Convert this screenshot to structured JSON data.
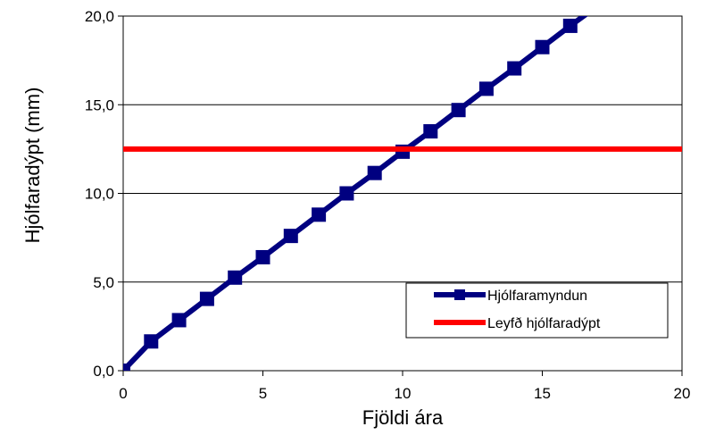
{
  "chart_data": {
    "type": "line",
    "xlabel": "Fjöldi ára",
    "ylabel": "Hjólfaradýpt (mm)",
    "xlim": [
      0,
      20
    ],
    "ylim": [
      0,
      20
    ],
    "xticks": [
      0,
      5,
      10,
      15,
      20
    ],
    "xtick_labels": [
      "0",
      "5",
      "10",
      "15",
      "20"
    ],
    "yticks": [
      0,
      5,
      10,
      15,
      20
    ],
    "ytick_labels": [
      "0,0",
      "5,0",
      "10,0",
      "15,0",
      "20,0"
    ],
    "grid": "horizontal",
    "legend_position": "bottom-right",
    "series": [
      {
        "name": "Hjólfaramyndun",
        "color": "#000080",
        "marker": "square",
        "x": [
          0,
          1,
          2,
          3,
          4,
          5,
          6,
          7,
          8,
          9,
          10,
          11,
          12,
          13,
          14,
          15,
          16,
          17
        ],
        "y": [
          0.0,
          1.65,
          2.85,
          4.05,
          5.25,
          6.4,
          7.6,
          8.8,
          10.0,
          11.15,
          12.35,
          13.5,
          14.7,
          15.9,
          17.05,
          18.25,
          19.45,
          20.6
        ]
      },
      {
        "name": "Leyfð hjólfaradýpt",
        "color": "#ff0000",
        "marker": "none",
        "x": [
          0,
          20
        ],
        "y": [
          12.5,
          12.5
        ]
      }
    ]
  }
}
